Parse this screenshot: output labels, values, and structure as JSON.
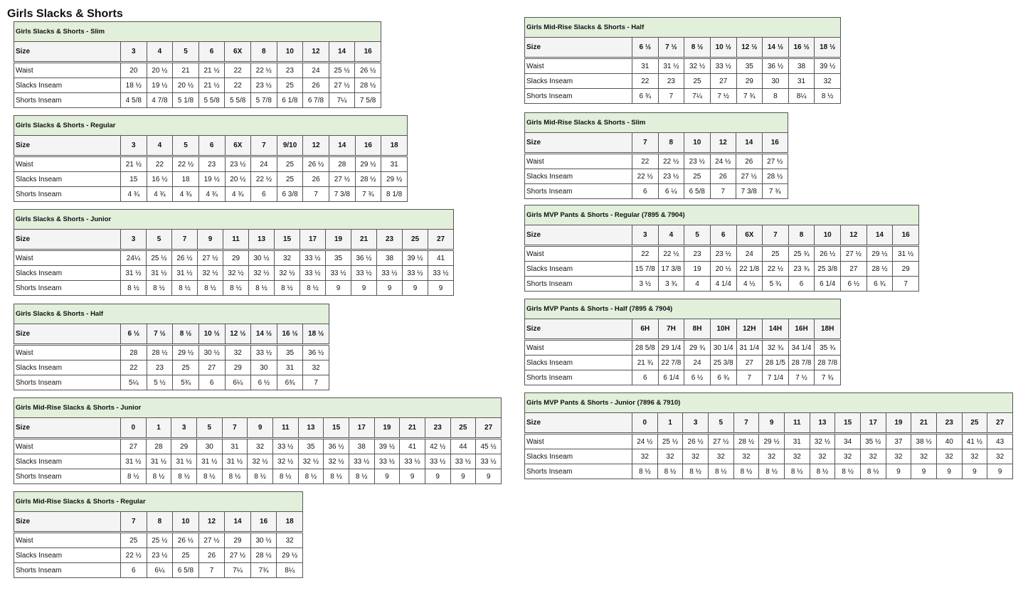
{
  "page_title": "Girls Slacks & Shorts",
  "row_labels": {
    "size": "Size",
    "waist": "Waist",
    "slacks": "Slacks Inseam",
    "shorts": "Shorts Inseam"
  },
  "colors": {
    "title_bg": "#e2efda",
    "header_bg": "#f4f4f4",
    "border": "#555555"
  },
  "tables": [
    {
      "title": "Girls Slacks & Shorts - Slim",
      "sizes": [
        "3",
        "4",
        "5",
        "6",
        "6X",
        "8",
        "10",
        "12",
        "14",
        "16"
      ],
      "waist": [
        "20",
        "20 ½",
        "21",
        "21 ½",
        "22",
        "22 ½",
        "23",
        "24",
        "25 ½",
        "26 ½"
      ],
      "slacks": [
        "18 ½",
        "19 ½",
        "20 ½",
        "21 ½",
        "22",
        "23 ½",
        "25",
        "26",
        "27 ½",
        "28 ½"
      ],
      "shorts": [
        "4 5/8",
        "4 7/8",
        "5 1/8",
        "5 5/8",
        "5 5/8",
        "5 7/8",
        "6 1/8",
        "6 7/8",
        "7¼",
        "7 5/8"
      ]
    },
    {
      "title": "Girls Slacks & Shorts - Regular",
      "sizes": [
        "3",
        "4",
        "5",
        "6",
        "6X",
        "7",
        "9/10",
        "12",
        "14",
        "16",
        "18"
      ],
      "waist": [
        "21 ½",
        "22",
        "22 ½",
        "23",
        "23 ½",
        "24",
        "25",
        "26 ½",
        "28",
        "29 ½",
        "31"
      ],
      "slacks": [
        "15",
        "16 ½",
        "18",
        "19 ½",
        "20 ½",
        "22 ½",
        "25",
        "26",
        "27 ½",
        "28 ½",
        "29 ½"
      ],
      "shorts": [
        "4 ¾",
        "4 ¾",
        "4 ¾",
        "4 ¾",
        "4 ¾",
        "6",
        "6 3/8",
        "7",
        "7 3/8",
        "7 ¾",
        "8 1/8"
      ]
    },
    {
      "title": "Girls Slacks & Shorts - Junior",
      "sizes": [
        "3",
        "5",
        "7",
        "9",
        "11",
        "13",
        "15",
        "17",
        "19",
        "21",
        "23",
        "25",
        "27"
      ],
      "waist": [
        "24¼",
        "25 ½",
        "26 ½",
        "27 ½",
        "29",
        "30 ½",
        "32",
        "33 ½",
        "35",
        "36 ½",
        "38",
        "39 ½",
        "41"
      ],
      "slacks": [
        "31 ½",
        "31 ½",
        "31 ½",
        "32 ½",
        "32 ½",
        "32 ½",
        "32 ½",
        "33 ½",
        "33 ½",
        "33 ½",
        "33 ½",
        "33 ½",
        "33 ½"
      ],
      "shorts": [
        "8 ½",
        "8 ½",
        "8 ½",
        "8 ½",
        "8 ½",
        "8 ½",
        "8 ½",
        "8 ½",
        "9",
        "9",
        "9",
        "9",
        "9"
      ]
    },
    {
      "title": "Girls Slacks & Shorts - Half",
      "sizes": [
        "6 ½",
        "7 ½",
        "8 ½",
        "10 ½",
        "12 ½",
        "14 ½",
        "16 ½",
        "18 ½"
      ],
      "waist": [
        "28",
        "28 ½",
        "29 ½",
        "30 ½",
        "32",
        "33 ½",
        "35",
        "36 ½"
      ],
      "slacks": [
        "22",
        "23",
        "25",
        "27",
        "29",
        "30",
        "31",
        "32"
      ],
      "shorts": [
        "5¼",
        "5 ½",
        "5¾",
        "6",
        "6¼",
        "6 ½",
        "6¾",
        "7"
      ]
    },
    {
      "title": "Girls Mid-Rise Slacks & Shorts - Junior",
      "sizes": [
        "0",
        "1",
        "3",
        "5",
        "7",
        "9",
        "11",
        "13",
        "15",
        "17",
        "19",
        "21",
        "23",
        "25",
        "27"
      ],
      "waist": [
        "27",
        "28",
        "29",
        "30",
        "31",
        "32",
        "33 ½",
        "35",
        "36 ½",
        "38",
        "39 ½",
        "41",
        "42 ½",
        "44",
        "45 ½"
      ],
      "slacks": [
        "31 ½",
        "31 ½",
        "31 ½",
        "31 ½",
        "31 ½",
        "32 ½",
        "32 ½",
        "32 ½",
        "32 ½",
        "33 ½",
        "33 ½",
        "33 ½",
        "33 ½",
        "33 ½",
        "33 ½"
      ],
      "shorts": [
        "8 ½",
        "8 ½",
        "8 ½",
        "8 ½",
        "8 ½",
        "8 ½",
        "8 ½",
        "8 ½",
        "8 ½",
        "8 ½",
        "9",
        "9",
        "9",
        "9",
        "9"
      ]
    },
    {
      "title": "Girls Mid-Rise Slacks & Shorts - Regular",
      "sizes": [
        "7",
        "8",
        "10",
        "12",
        "14",
        "16",
        "18"
      ],
      "waist": [
        "25",
        "25 ½",
        "26 ½",
        "27 ½",
        "29",
        "30 ½",
        "32"
      ],
      "slacks": [
        "22 ½",
        "23 ½",
        "25",
        "26",
        "27 ½",
        "28 ½",
        "29 ½"
      ],
      "shorts": [
        "6",
        "6¼",
        "6 5/8",
        "7",
        "7¼",
        "7¾",
        "8¼"
      ]
    },
    {
      "title": "Girls Mid-Rise Slacks & Shorts - Half",
      "sizes": [
        "6 ½",
        "7 ½",
        "8 ½",
        "10 ½",
        "12 ½",
        "14 ½",
        "16 ½",
        "18 ½"
      ],
      "waist": [
        "31",
        "31 ½",
        "32 ½",
        "33 ½",
        "35",
        "36 ½",
        "38",
        "39 ½"
      ],
      "slacks": [
        "22",
        "23",
        "25",
        "27",
        "29",
        "30",
        "31",
        "32"
      ],
      "shorts": [
        "6 ¾",
        "7",
        "7¼",
        "7 ½",
        "7 ¾",
        "8",
        "8¼",
        "8 ½"
      ]
    },
    {
      "title": "Girls Mid-Rise Slacks & Shorts - Slim",
      "sizes": [
        "7",
        "8",
        "10",
        "12",
        "14",
        "16"
      ],
      "waist": [
        "22",
        "22 ½",
        "23 ½",
        "24 ½",
        "26",
        "27 ½"
      ],
      "slacks": [
        "22 ½",
        "23 ½",
        "25",
        "26",
        "27 ½",
        "28 ½"
      ],
      "shorts": [
        "6",
        "6 ¼",
        "6 5/8",
        "7",
        "7 3/8",
        "7 ¾"
      ]
    },
    {
      "title": "Girls MVP Pants & Shorts - Regular (7895 & 7904)",
      "sizes": [
        "3",
        "4",
        "5",
        "6",
        "6X",
        "7",
        "8",
        "10",
        "12",
        "14",
        "16"
      ],
      "waist": [
        "22",
        "22 ½",
        "23",
        "23 ½",
        "24",
        "25",
        "25 ¾",
        "26 ½",
        "27 ½",
        "29 ½",
        "31 ½"
      ],
      "slacks": [
        "15 7/8",
        "17 3/8",
        "19",
        "20 ½",
        "22 1/8",
        "22 ½",
        "23 ¾",
        "25 3/8",
        "27",
        "28 ½",
        "29"
      ],
      "shorts": [
        "3 ½",
        "3 ¾",
        "4",
        "4 1/4",
        "4 ½",
        "5 ¾",
        "6",
        "6 1/4",
        "6 ½",
        "6 ¾",
        "7"
      ]
    },
    {
      "title": "Girls MVP Pants & Shorts - Half (7895 & 7904)",
      "sizes": [
        "6H",
        "7H",
        "8H",
        "10H",
        "12H",
        "14H",
        "16H",
        "18H"
      ],
      "waist": [
        "28 5/8",
        "29 1/4",
        "29 ¾",
        "30 1/4",
        "31 1/4",
        "32 ¾",
        "34 1/4",
        "35 ¾"
      ],
      "slacks": [
        "21 ¾",
        "22 7/8",
        "24",
        "25 3/8",
        "27",
        "28 1/5",
        "28 7/8",
        "28 7/8"
      ],
      "shorts": [
        "6",
        "6 1/4",
        "6 ½",
        "6 ¾",
        "7",
        "7 1/4",
        "7 ½",
        "7 ¾"
      ]
    },
    {
      "title": "Girls MVP Pants & Shorts - Junior (7896 & 7910)",
      "sizes": [
        "0",
        "1",
        "3",
        "5",
        "7",
        "9",
        "11",
        "13",
        "15",
        "17",
        "19",
        "21",
        "23",
        "25",
        "27"
      ],
      "waist": [
        "24 ½",
        "25 ½",
        "26 ½",
        "27 ½",
        "28 ½",
        "29 ½",
        "31",
        "32 ½",
        "34",
        "35 ½",
        "37",
        "38 ½",
        "40",
        "41 ½",
        "43"
      ],
      "slacks": [
        "32",
        "32",
        "32",
        "32",
        "32",
        "32",
        "32",
        "32",
        "32",
        "32",
        "32",
        "32",
        "32",
        "32",
        "32"
      ],
      "shorts": [
        "8 ½",
        "8 ½",
        "8 ½",
        "8 ½",
        "8 ½",
        "8 ½",
        "8 ½",
        "8 ½",
        "8 ½",
        "8 ½",
        "9",
        "9",
        "9",
        "9",
        "9"
      ]
    }
  ]
}
